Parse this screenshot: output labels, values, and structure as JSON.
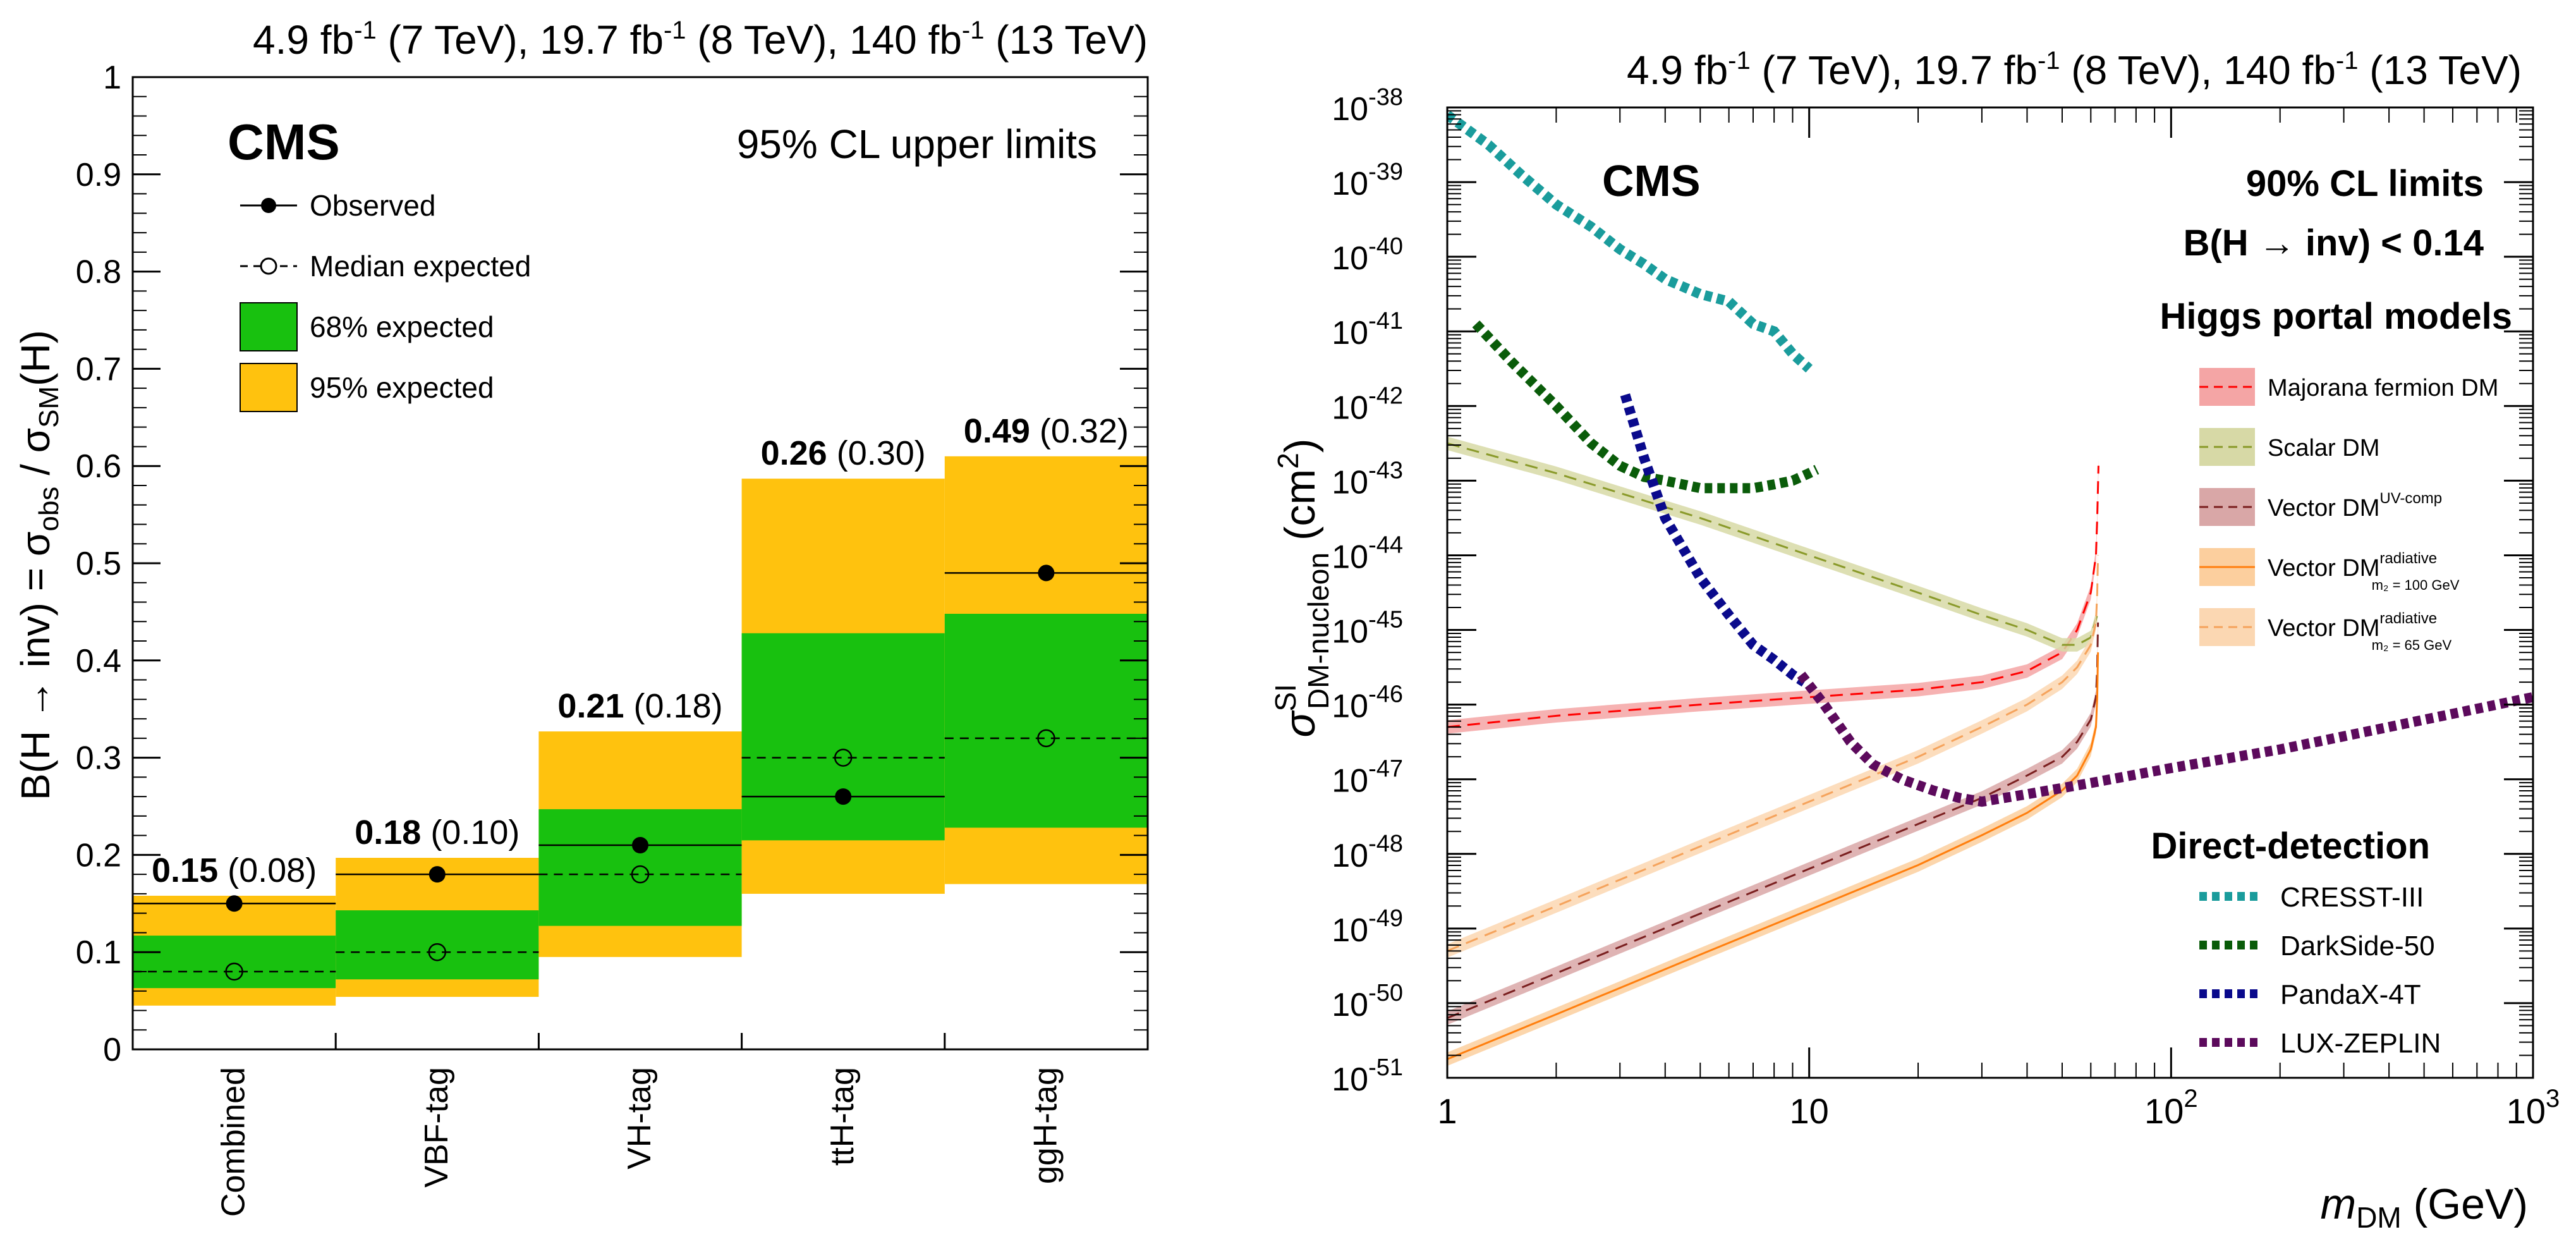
{
  "chart_data": [
    {
      "type": "bar",
      "subtype": "limit-summary",
      "lumi_header": [
        "4.9 fb",
        "-1",
        " (7 TeV), 19.7 fb",
        "-1",
        " (8 TeV), 140 fb",
        "-1",
        " (13 TeV)"
      ],
      "cms_label": "CMS",
      "title": "95% CL upper limits",
      "ylabel": "B(H → inv) = σobs / σSM(H)",
      "ylim": [
        0,
        1
      ],
      "yticks": [
        0,
        0.1,
        0.2,
        0.3,
        0.4,
        0.5,
        0.6,
        0.7,
        0.8,
        0.9,
        1
      ],
      "categories": [
        "Combined",
        "VBF-tag",
        "VH-tag",
        "ttH-tag",
        "ggH-tag"
      ],
      "legend": [
        "Observed",
        "Median expected",
        "68% expected",
        "95% expected"
      ],
      "observed": [
        0.15,
        0.18,
        0.21,
        0.26,
        0.49
      ],
      "observed_labels": [
        "0.15",
        "0.18",
        "0.21",
        "0.26",
        "0.49"
      ],
      "expected": [
        0.08,
        0.1,
        0.18,
        0.3,
        0.32
      ],
      "expected_labels": [
        "(0.08)",
        "(0.10)",
        "(0.18)",
        "(0.30)",
        "(0.32)"
      ],
      "band68": [
        [
          0.063,
          0.117
        ],
        [
          0.072,
          0.143
        ],
        [
          0.127,
          0.247
        ],
        [
          0.215,
          0.428
        ],
        [
          0.228,
          0.448
        ]
      ],
      "band95": [
        [
          0.045,
          0.158
        ],
        [
          0.054,
          0.197
        ],
        [
          0.095,
          0.327
        ],
        [
          0.16,
          0.587
        ],
        [
          0.17,
          0.61
        ]
      ],
      "colors": {
        "band68": "#18c10f",
        "band95": "#ffc20e"
      }
    },
    {
      "type": "line",
      "subtype": "log-log exclusion limits",
      "lumi_header": [
        "4.9 fb",
        "-1",
        " (7 TeV), 19.7 fb",
        "-1",
        " (8 TeV), 140 fb",
        "-1",
        " (13 TeV)"
      ],
      "cms_label": "CMS",
      "annotations": [
        "90% CL limits",
        "B(H → inv) < 0.14",
        "Higgs portal models",
        "Direct-detection"
      ],
      "xlabel": "mDM (GeV)",
      "ylabel": "σSI DM-nucleon (cm²)",
      "xlim_log10": [
        0,
        3
      ],
      "ylim_log10": [
        -51,
        -38
      ],
      "xtick_labels": [
        "1",
        "10",
        "10",
        "10"
      ],
      "xtick_exponents": [
        "",
        "",
        "2",
        "3"
      ],
      "ytick_labels": [
        "10",
        "10",
        "10",
        "10",
        "10",
        "10",
        "10",
        "10",
        "10",
        "10",
        "10",
        "10",
        "10",
        "10"
      ],
      "ytick_exponents": [
        "-51",
        "-50",
        "-49",
        "-48",
        "-47",
        "-46",
        "-45",
        "-44",
        "-43",
        "-42",
        "-41",
        "-40",
        "-39",
        "-38"
      ],
      "higgs_portal_legend": [
        {
          "name": "Majorana fermion DM",
          "sup": "",
          "sub": "",
          "color": "#ff0000",
          "fill": "#f4a5a5",
          "dash": true
        },
        {
          "name": "Scalar DM",
          "sup": "",
          "sub": "",
          "color": "#8a9a2a",
          "fill": "#d7d9a6",
          "dash": true
        },
        {
          "name": "Vector DM",
          "sup": "UV-comp",
          "sub": "",
          "color": "#7a1f1f",
          "fill": "#d9a7a7",
          "dash": true
        },
        {
          "name": "Vector DM",
          "sup": "radiative",
          "sub": "m₂ = 100 GeV",
          "color": "#ff7f0e",
          "fill": "#fccf9e",
          "dash": false
        },
        {
          "name": "Vector DM",
          "sup": "radiative",
          "sub": "m₂ = 65 GeV",
          "color": "#f5a35c",
          "fill": "#fbd7b2",
          "dash": true
        }
      ],
      "direct_detection_legend": [
        {
          "name": "CRESST-III",
          "color": "#1a9c9c"
        },
        {
          "name": "DarkSide-50",
          "color": "#0a5c0a"
        },
        {
          "name": "PandaX-4T",
          "color": "#0a0a8c"
        },
        {
          "name": "LUX-ZEPLIN",
          "color": "#5c0a5c"
        }
      ],
      "series": [
        {
          "name": "Majorana fermion DM",
          "x": [
            1,
            2,
            5,
            10,
            20,
            30,
            40,
            50,
            55,
            60,
            62,
            62.5,
            63
          ],
          "y_log10": [
            -46.3,
            -46.15,
            -46.0,
            -45.9,
            -45.8,
            -45.7,
            -45.55,
            -45.3,
            -45.0,
            -44.5,
            -44.0,
            -43.5,
            -42.8
          ]
        },
        {
          "name": "Scalar DM",
          "x": [
            1,
            2,
            5,
            10,
            20,
            30,
            40,
            50,
            55,
            60,
            62.5
          ],
          "y_log10": [
            -42.5,
            -42.9,
            -43.5,
            -44.0,
            -44.5,
            -44.8,
            -45.0,
            -45.2,
            -45.2,
            -45.1,
            -44.8
          ]
        },
        {
          "name": "Vector DM UV-comp",
          "x": [
            1,
            2,
            5,
            10,
            20,
            30,
            40,
            50,
            55,
            60,
            62,
            62.5,
            62.8
          ],
          "y_log10": [
            -50.2,
            -49.6,
            -48.8,
            -48.2,
            -47.6,
            -47.25,
            -46.95,
            -46.7,
            -46.5,
            -46.2,
            -45.9,
            -45.5,
            -44.9
          ]
        },
        {
          "name": "Vector DM radiative m2 = 100 GeV",
          "x": [
            1,
            2,
            5,
            10,
            20,
            30,
            40,
            50,
            55,
            60,
            62,
            62.5,
            62.8
          ],
          "y_log10": [
            -50.75,
            -50.15,
            -49.35,
            -48.75,
            -48.15,
            -47.75,
            -47.45,
            -47.15,
            -46.95,
            -46.6,
            -46.3,
            -45.9,
            -45.3
          ]
        },
        {
          "name": "Vector DM radiative m2 = 65 GeV",
          "x": [
            1,
            2,
            5,
            10,
            20,
            30,
            40,
            50,
            55,
            60,
            62,
            62.5,
            62.8
          ],
          "y_log10": [
            -49.3,
            -48.7,
            -47.9,
            -47.3,
            -46.7,
            -46.3,
            -46.0,
            -45.7,
            -45.5,
            -45.2,
            -44.9,
            -44.5,
            -44.0
          ]
        },
        {
          "name": "CRESST-III",
          "x": [
            1,
            1.3,
            1.6,
            2,
            2.5,
            3,
            3.5,
            4,
            5,
            6,
            7,
            8,
            9,
            10
          ],
          "y_log10": [
            -38.1,
            -38.5,
            -38.9,
            -39.3,
            -39.6,
            -39.9,
            -40.1,
            -40.3,
            -40.5,
            -40.6,
            -40.9,
            -41.0,
            -41.3,
            -41.5
          ]
        },
        {
          "name": "DarkSide-50",
          "x": [
            1.2,
            1.5,
            2,
            2.5,
            3,
            3.5,
            4,
            5,
            6,
            7,
            8,
            9,
            10,
            10.5
          ],
          "y_log10": [
            -40.9,
            -41.4,
            -42.0,
            -42.5,
            -42.8,
            -42.95,
            -43.0,
            -43.1,
            -43.1,
            -43.1,
            -43.05,
            -43.0,
            -42.9,
            -42.85
          ]
        },
        {
          "name": "PandaX-4T",
          "x": [
            3.1,
            3.5,
            4,
            5,
            6,
            7,
            8,
            9,
            9.7
          ],
          "y_log10": [
            -41.85,
            -42.7,
            -43.5,
            -44.3,
            -44.8,
            -45.2,
            -45.4,
            -45.6,
            -45.7
          ]
        },
        {
          "name": "LUX-ZEPLIN",
          "x": [
            9.5,
            11,
            13,
            15,
            18,
            22,
            26,
            30,
            40,
            60,
            100,
            200,
            400,
            1000
          ],
          "y_log10": [
            -45.6,
            -46.0,
            -46.5,
            -46.8,
            -47.0,
            -47.15,
            -47.25,
            -47.3,
            -47.2,
            -47.05,
            -46.85,
            -46.6,
            -46.3,
            -45.9
          ]
        }
      ]
    }
  ]
}
